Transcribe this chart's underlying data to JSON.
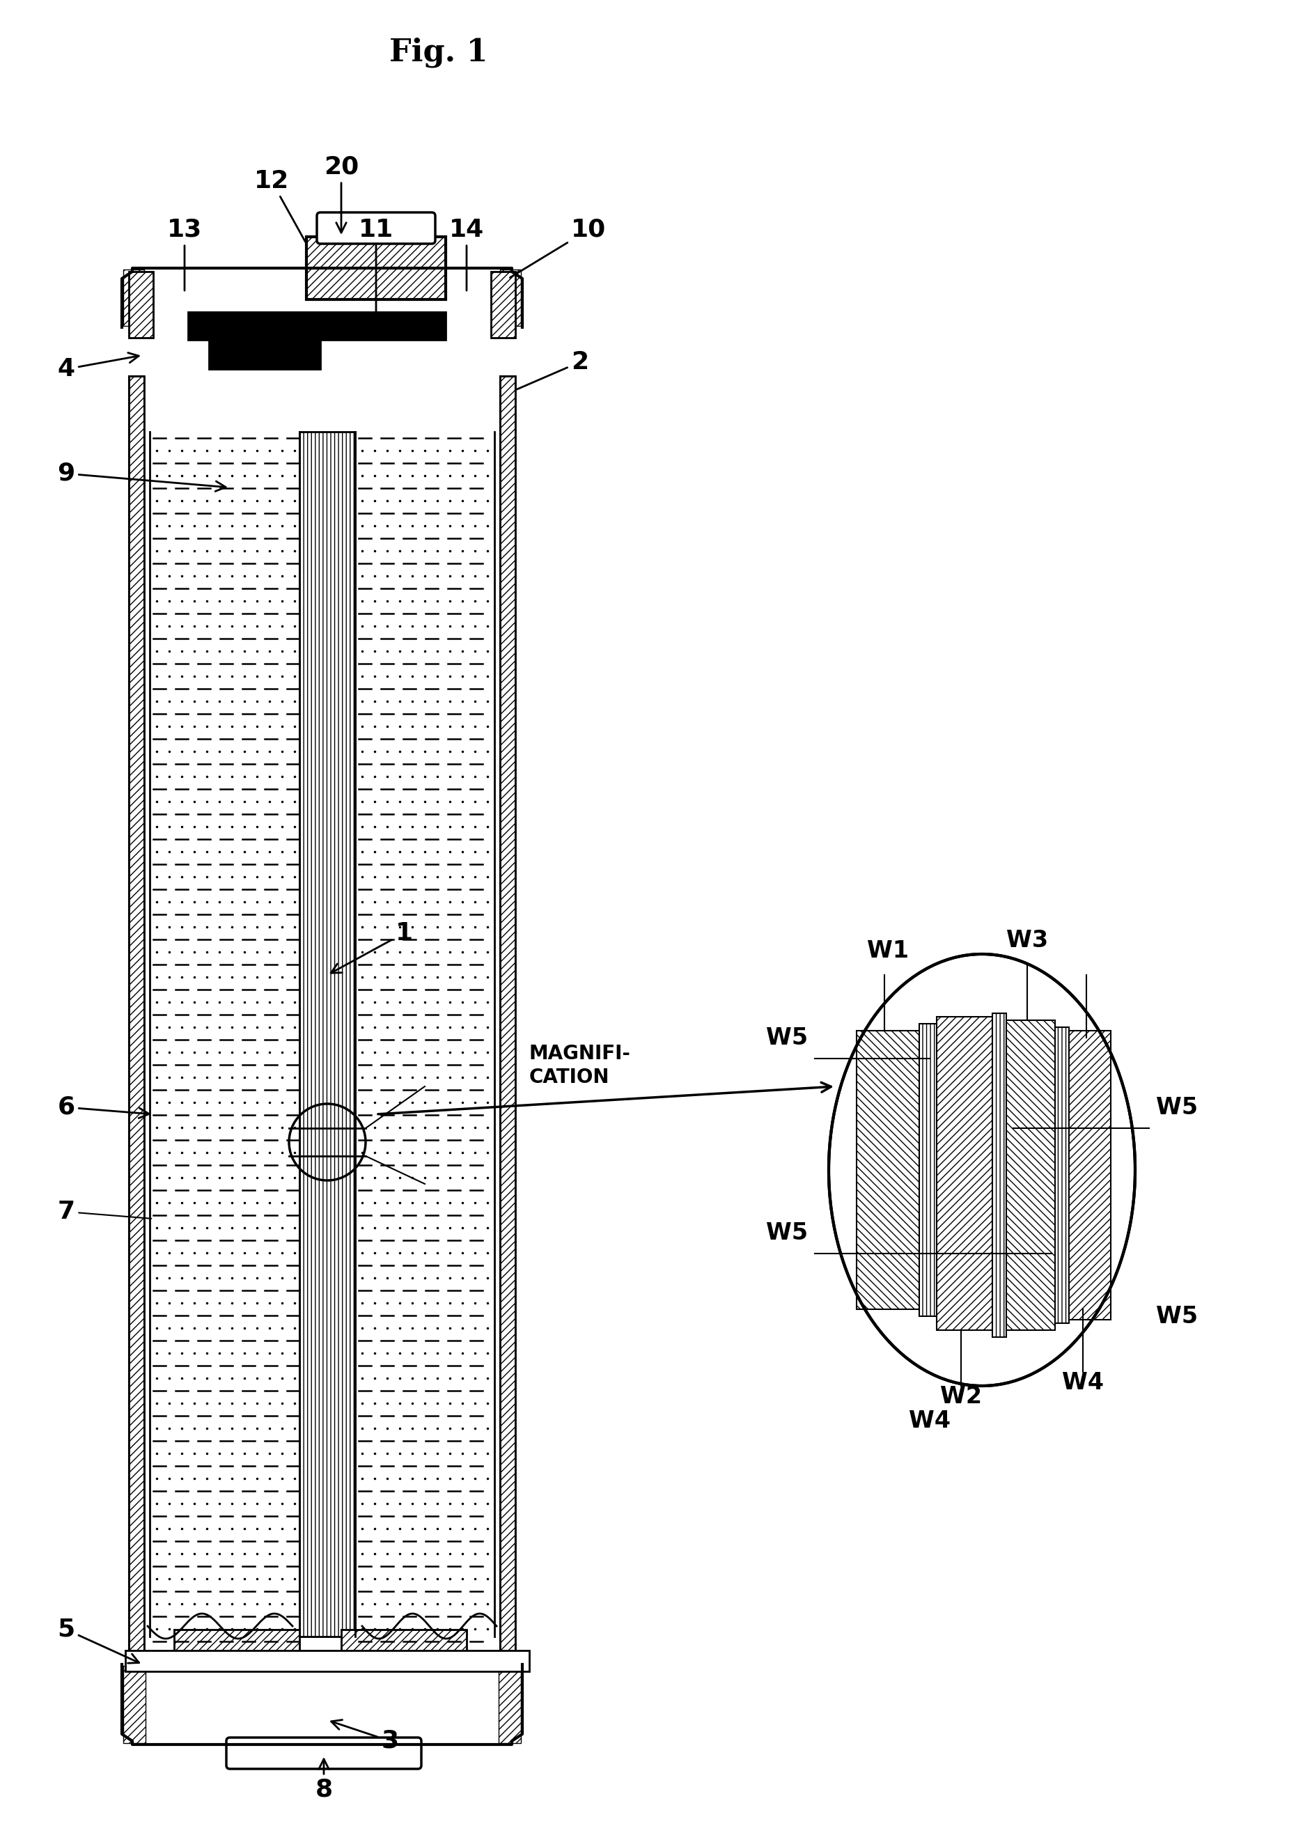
{
  "title": "Fig. 1",
  "background_color": "#ffffff",
  "line_color": "#000000",
  "fig_width": 18.61,
  "fig_height": 26.45,
  "labels": {
    "fig_title": "Fig. 1",
    "numbers": [
      "1",
      "2",
      "3",
      "4",
      "5",
      "6",
      "7",
      "8",
      "9",
      "10",
      "11",
      "12",
      "13",
      "14",
      "20"
    ],
    "magnification": "MAGNIFI-\nCATION",
    "W_labels": [
      "W1",
      "W2",
      "W3",
      "W4",
      "W4",
      "W5",
      "W5",
      "W5",
      "W5"
    ]
  }
}
